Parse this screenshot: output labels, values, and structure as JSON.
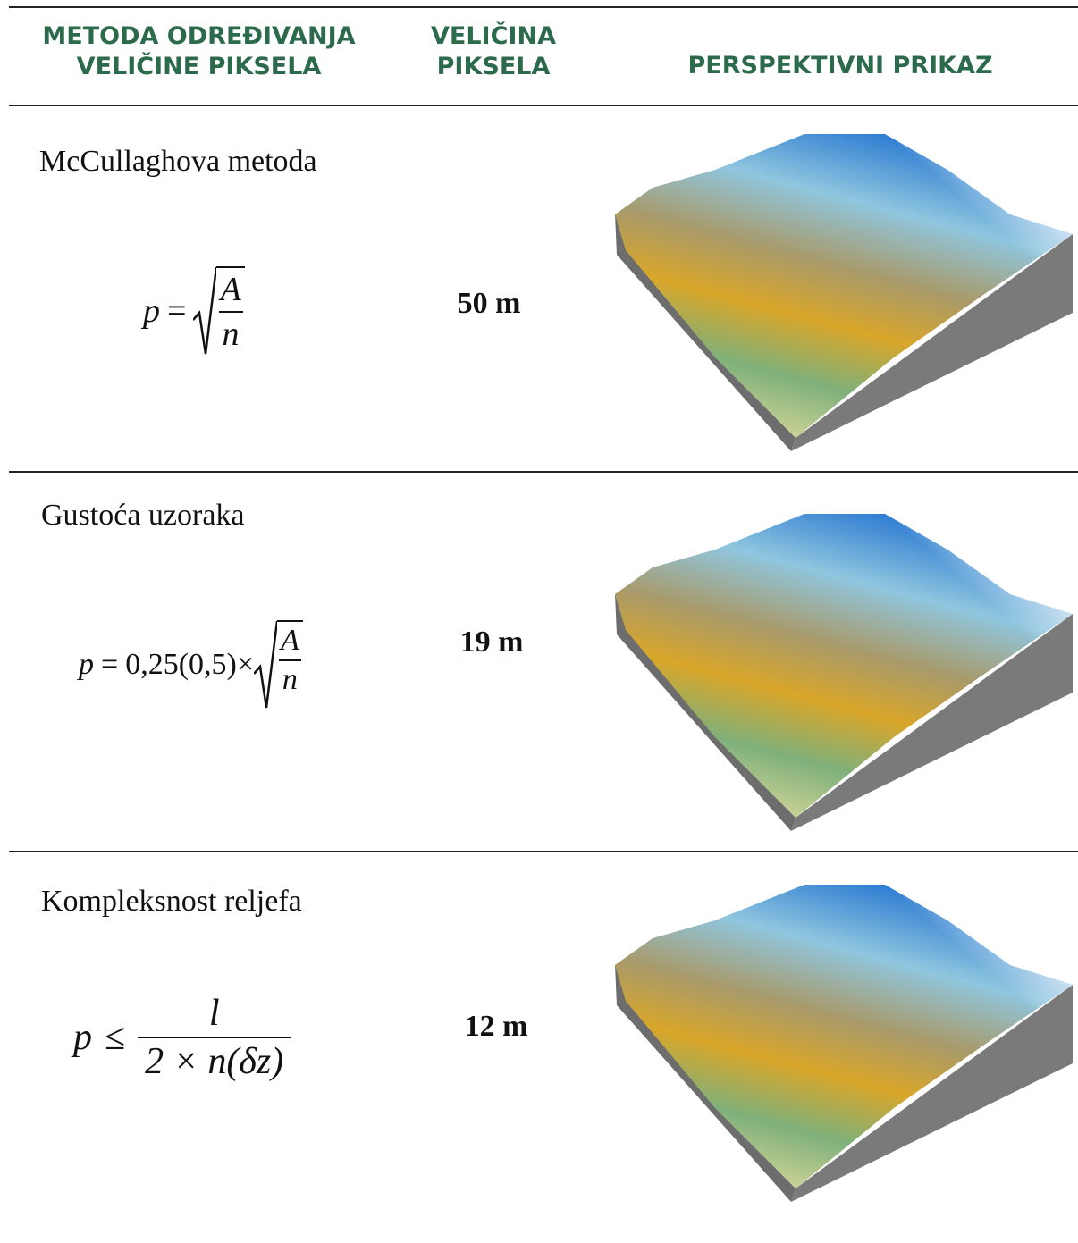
{
  "table": {
    "header": [
      "METODA ODREĐIVANJA VELIČINE PIKSELA",
      "VELIČINA PIKSELA",
      "PERSPEKTIVNI PRIKAZ"
    ],
    "rows": [
      {
        "method": "McCullaghova metoda",
        "formula": {
          "lhs": "p",
          "op": "=",
          "numerator": "A",
          "denominator": "n"
        },
        "size": "50 m"
      },
      {
        "method": "Gustoća uzoraka",
        "formula": {
          "lhs": "p",
          "op": "=",
          "coef": "0,25(0,5)×",
          "numerator": "A",
          "denominator": "n"
        },
        "size": "19 m"
      },
      {
        "method": "Kompleksnost reljefa",
        "formula": {
          "lhs": "p",
          "op": "≤",
          "numerator": "l",
          "denominator": "2 × n(δz)"
        },
        "size": "12 m"
      }
    ]
  }
}
